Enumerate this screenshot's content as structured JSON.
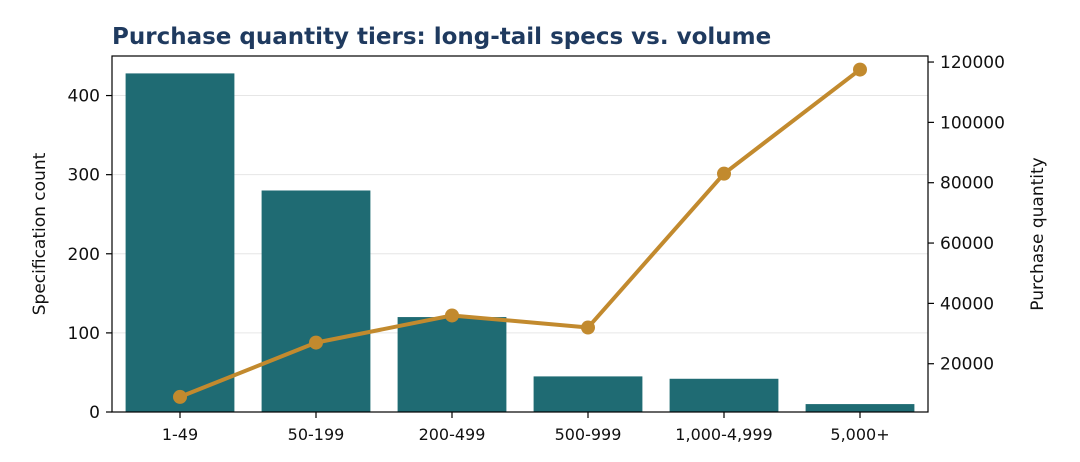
{
  "chart_data": {
    "type": "bar+line",
    "title": "Purchase quantity tiers: long-tail specs vs. volume",
    "categories": [
      "1-49",
      "50-199",
      "200-499",
      "500-999",
      "1,000-4,999",
      "5,000+"
    ],
    "series": [
      {
        "values": [
          428,
          280,
          120,
          45,
          42,
          10
        ],
        "type": "bar",
        "axis": "left"
      },
      {
        "values": [
          9000,
          27000,
          36000,
          32000,
          83000,
          117500
        ],
        "type": "line",
        "axis": "right"
      }
    ],
    "ylabel": "Specification count",
    "y2label": "Purchase quantity",
    "ylim": [
      0,
      450
    ],
    "y2lim": [
      4000,
      122000
    ],
    "yticks": [
      0,
      100,
      200,
      300,
      400
    ],
    "y2ticks": [
      20000,
      40000,
      60000,
      80000,
      100000,
      120000
    ],
    "grid": "horizontal",
    "colors": {
      "bar": "#1f6b73",
      "line": "#c28a2e",
      "title": "#1f3a5f"
    }
  }
}
